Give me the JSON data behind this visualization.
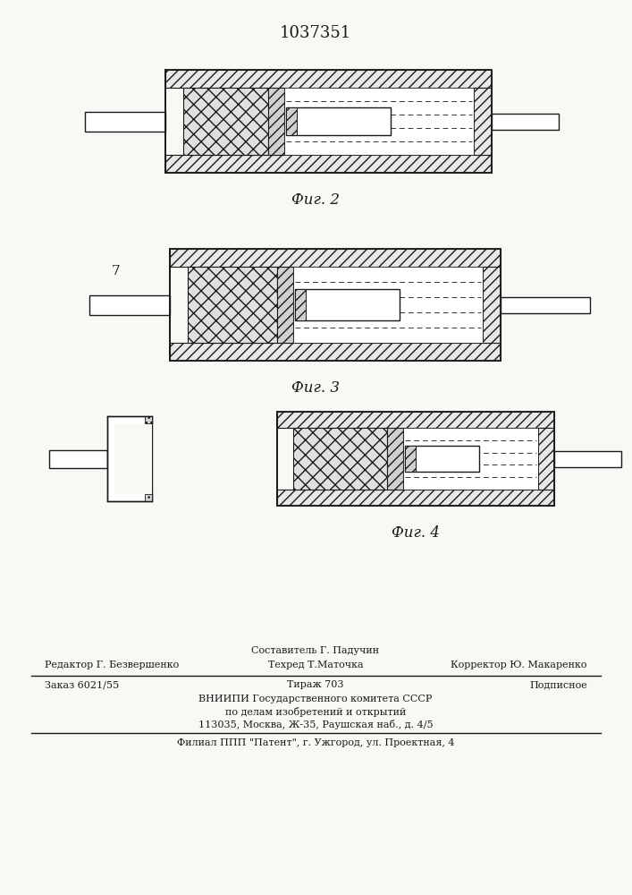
{
  "patent_number": "1037351",
  "fig2_label": "Фиг. 2",
  "fig3_label": "Фиг. 3",
  "fig4_label": "Фиг. 4",
  "label_7": "7",
  "footer_line1": "Составитель Г. Падучин",
  "footer_line2_left": "Редактор Г. Безвершенко",
  "footer_line2_mid": "Техред Т.Маточка",
  "footer_line2_right": "Корректор Ю. Макаренко",
  "footer_line3_left": "Заказ 6021/55",
  "footer_line3_mid": "Тираж 703",
  "footer_line3_right": "Подписное",
  "footer_line4": "ВНИИПИ Государственного комитета СССР",
  "footer_line5": "по делам изобретений и открытий",
  "footer_line6": "113035, Москва, Ж-35, Раушская наб., д. 4/5",
  "footer_line7": "Филиал ППП \"Патент\", г. Ужгород, ул. Проектная, 4",
  "bg_color": "#f8f8f5",
  "line_color": "#1a1a1a"
}
